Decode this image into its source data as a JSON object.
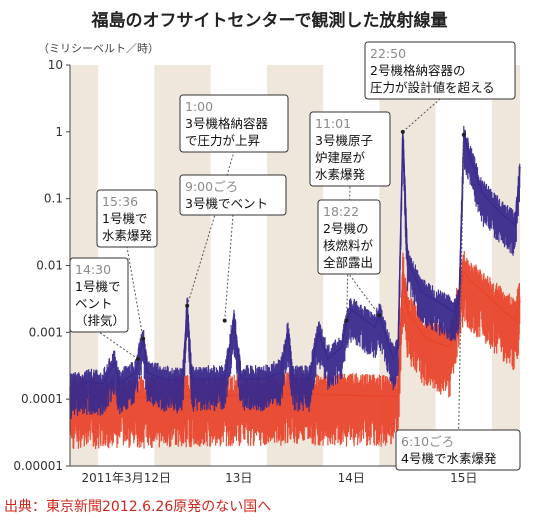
{
  "title": "福島のオフサイトセンターで観測した放射線量",
  "unit_label": "（ミリシーベルト／時）",
  "source": "出典：東京新聞2012.6.26原発のない国へ",
  "colors": {
    "series1": "#3a2a8c",
    "series2": "#e8452c",
    "night_band": "#efe6dc",
    "axis": "#444444"
  },
  "chart_data": {
    "type": "line",
    "title": "福島のオフサイトセンターで観測した放射線量",
    "ylabel": "（ミリシーベルト／時）",
    "yscale": "log",
    "ylim": [
      1e-05,
      10
    ],
    "y_ticks": [
      "10",
      "1",
      "0.1",
      "0.01",
      "0.001",
      "0.0001",
      "0.00001"
    ],
    "x_ticks": [
      "2011年3月12日",
      "13日",
      "14日",
      "15日"
    ],
    "xlim_hours": [
      0,
      96
    ],
    "series": [
      {
        "name": "",
        "color": "#3a2a8c",
        "points": [
          [
            0,
            0.00015
          ],
          [
            4,
            0.00018
          ],
          [
            7,
            0.00017
          ],
          [
            9.5,
            0.00035
          ],
          [
            10.5,
            0.00017
          ],
          [
            14,
            0.00025
          ],
          [
            15.6,
            0.0008
          ],
          [
            16.5,
            0.00025
          ],
          [
            20,
            0.0002
          ],
          [
            24,
            0.00018
          ],
          [
            25,
            0.0025
          ],
          [
            26,
            0.0002
          ],
          [
            33,
            0.0002
          ],
          [
            35,
            0.0015
          ],
          [
            36.5,
            0.0002
          ],
          [
            41,
            0.0002
          ],
          [
            45,
            0.00025
          ],
          [
            46.5,
            0.001
          ],
          [
            47.5,
            0.0002
          ],
          [
            51,
            0.0002
          ],
          [
            53,
            0.001
          ],
          [
            55,
            0.0004
          ],
          [
            58,
            0.0006
          ],
          [
            59,
            0.0015
          ],
          [
            60,
            0.0022
          ],
          [
            63,
            0.0015
          ],
          [
            65,
            0.0012
          ],
          [
            66,
            0.0018
          ],
          [
            69,
            0.0004
          ],
          [
            70,
            0.0006
          ],
          [
            71,
            1.0
          ],
          [
            72,
            0.012
          ],
          [
            75,
            0.004
          ],
          [
            78,
            0.003
          ],
          [
            82,
            0.002
          ],
          [
            83,
            0.003
          ],
          [
            84,
            0.9
          ],
          [
            85,
            0.5
          ],
          [
            88,
            0.12
          ],
          [
            92,
            0.06
          ],
          [
            95,
            0.04
          ],
          [
            96,
            0.3
          ]
        ]
      },
      {
        "name": "",
        "color": "#e8452c",
        "points": [
          [
            0,
            0.0001
          ],
          [
            24,
            0.00011
          ],
          [
            48,
            0.00012
          ],
          [
            70,
            0.00011
          ],
          [
            71,
            0.008
          ],
          [
            72,
            0.002
          ],
          [
            76,
            0.0008
          ],
          [
            81,
            0.0006
          ],
          [
            84,
            0.008
          ],
          [
            85,
            0.0065
          ],
          [
            90,
            0.003
          ],
          [
            95,
            0.0015
          ],
          [
            96,
            0.003
          ]
        ]
      }
    ],
    "annotations": [
      {
        "time": "14:30",
        "text": [
          "1号機で",
          "ベント",
          "（排気）"
        ]
      },
      {
        "time": "15:36",
        "text": [
          "1号機で",
          "水素爆発"
        ]
      },
      {
        "time": "9:00ごろ",
        "text": [
          "3号機でベント"
        ]
      },
      {
        "time": "1:00",
        "text": [
          "3号機格納容器",
          "で圧力が上昇"
        ]
      },
      {
        "time": "11:01",
        "text": [
          "3号機原子",
          "炉建屋が",
          "水素爆発"
        ]
      },
      {
        "time": "18:22",
        "text": [
          "2号機の",
          "核燃料が",
          "全部露出"
        ]
      },
      {
        "time": "22:50",
        "text": [
          "2号機格納容器の",
          "圧力が設計値を超える"
        ]
      },
      {
        "time": "6:10ごろ",
        "text": [
          "4号機で水素爆発"
        ]
      }
    ]
  }
}
